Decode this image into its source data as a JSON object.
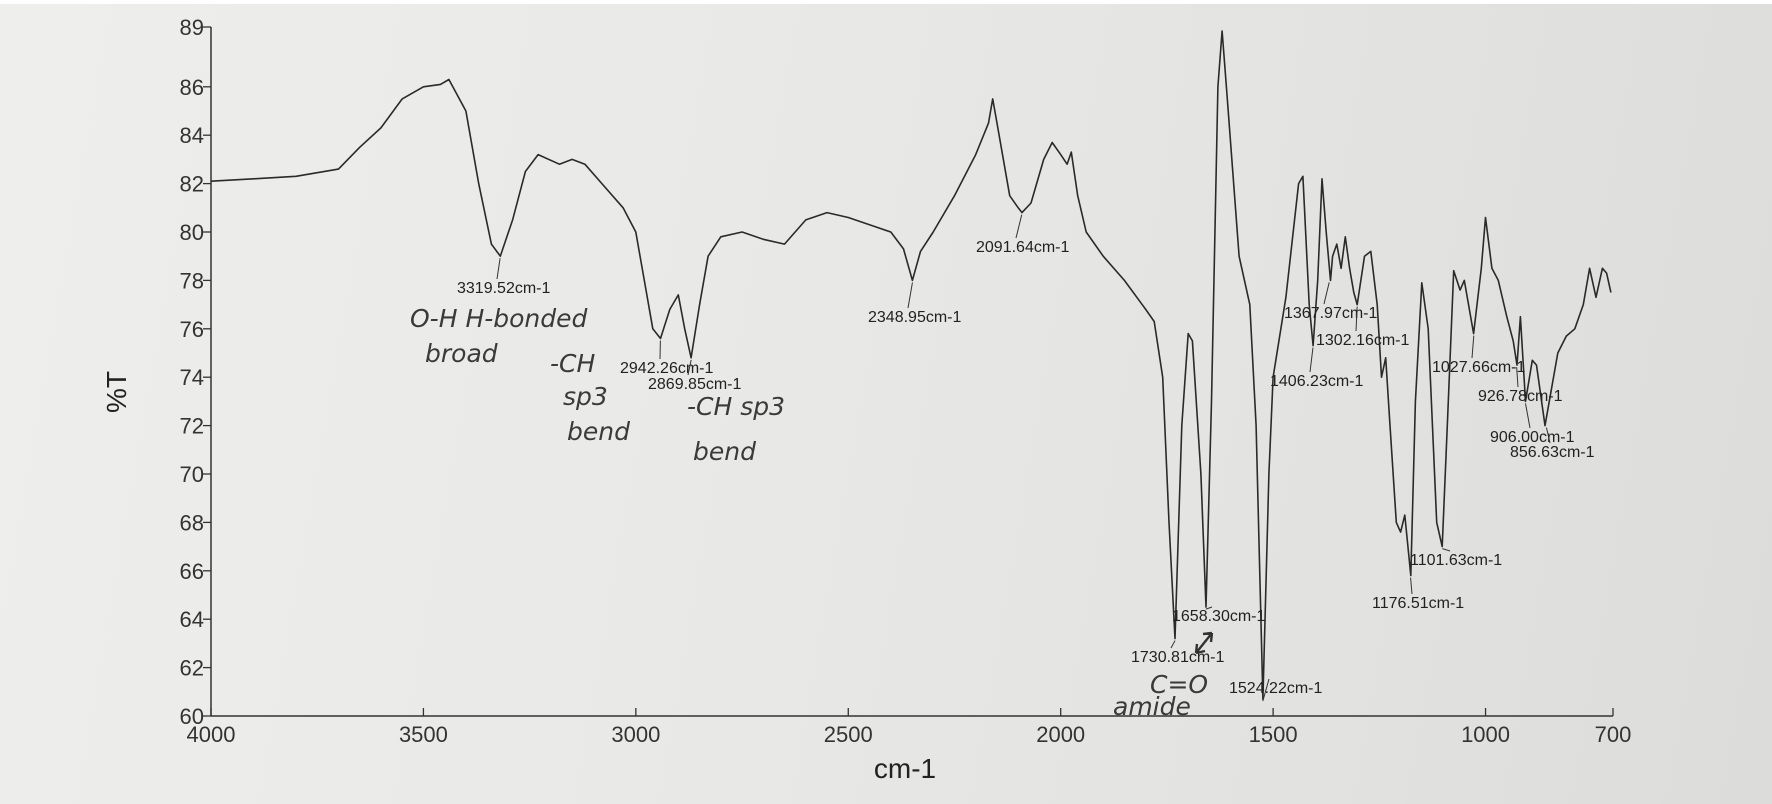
{
  "chart_data": {
    "type": "line",
    "xlabel": "cm-1",
    "ylabel": "%T",
    "xlim": [
      4000,
      700
    ],
    "ylim": [
      60,
      89
    ],
    "x_reversed": true,
    "grid": false,
    "line_color": "#2a2a2a",
    "xticks": [
      4000,
      3500,
      3000,
      2500,
      2000,
      1500,
      1000,
      700
    ],
    "yticks": [
      60,
      62,
      64,
      66,
      68,
      70,
      72,
      74,
      76,
      78,
      80,
      82,
      84,
      86,
      89
    ],
    "series": [
      {
        "x": [
          4000,
          3900,
          3800,
          3700,
          3650,
          3600,
          3550,
          3500,
          3460,
          3440,
          3400,
          3370,
          3340,
          3319,
          3290,
          3260,
          3230,
          3180,
          3150,
          3120,
          3080,
          3030,
          3000,
          2980,
          2960,
          2942,
          2920,
          2900,
          2885,
          2870,
          2850,
          2830,
          2800,
          2750,
          2700,
          2650,
          2600,
          2550,
          2500,
          2450,
          2400,
          2370,
          2349,
          2330,
          2300,
          2250,
          2200,
          2170,
          2160,
          2150,
          2120,
          2100,
          2091,
          2070,
          2040,
          2020,
          2000,
          1985,
          1975,
          1960,
          1940,
          1900,
          1850,
          1800,
          1780,
          1760,
          1745,
          1731,
          1715,
          1700,
          1690,
          1670,
          1658,
          1645,
          1630,
          1620,
          1610,
          1580,
          1555,
          1540,
          1524,
          1510,
          1500,
          1470,
          1440,
          1430,
          1415,
          1406,
          1395,
          1385,
          1375,
          1365,
          1360,
          1350,
          1340,
          1330,
          1320,
          1310,
          1302,
          1285,
          1270,
          1255,
          1245,
          1235,
          1225,
          1210,
          1200,
          1190,
          1176,
          1165,
          1150,
          1135,
          1115,
          1102,
          1090,
          1075,
          1060,
          1050,
          1028,
          1010,
          1000,
          985,
          970,
          950,
          935,
          926,
          918,
          906,
          890,
          880,
          860,
          845,
          830,
          810,
          790,
          770,
          755,
          740,
          725,
          715,
          705
        ],
        "y": [
          82.1,
          82.2,
          82.3,
          82.6,
          83.5,
          84.3,
          85.5,
          86,
          86.1,
          86.3,
          85,
          82,
          79.5,
          79,
          80.5,
          82.5,
          83.2,
          82.8,
          83,
          82.8,
          82,
          81,
          80,
          78,
          76,
          75.6,
          76.8,
          77.4,
          76,
          74.8,
          77,
          79,
          79.8,
          80,
          79.7,
          79.5,
          80.5,
          80.8,
          80.6,
          80.3,
          80,
          79.3,
          78,
          79.2,
          80,
          81.5,
          83.2,
          84.5,
          85.5,
          84.5,
          81.5,
          81,
          80.8,
          81.2,
          83,
          83.7,
          83.2,
          82.8,
          83.3,
          81.5,
          80,
          79,
          78,
          76.8,
          76.3,
          74,
          68,
          63.2,
          72,
          75.8,
          75.5,
          70,
          64.5,
          73,
          86,
          88.3,
          86,
          79,
          77,
          72,
          60.7,
          70,
          74,
          77.3,
          82,
          82.3,
          77,
          75.3,
          78,
          82.2,
          80,
          78,
          79,
          79.5,
          78.5,
          79.8,
          78.5,
          77.5,
          77,
          79,
          79.2,
          77,
          74,
          74.8,
          72,
          68,
          67.6,
          68.3,
          65.8,
          73,
          77.9,
          76,
          68,
          67,
          72,
          78.4,
          77.6,
          78,
          75.8,
          78.5,
          80.6,
          78.5,
          78,
          76.5,
          75.5,
          74.5,
          76.5,
          73,
          74.7,
          74.5,
          72,
          73.5,
          75,
          75.7,
          76,
          77,
          78.5,
          77.3,
          78.5,
          78.3,
          77.5
        ]
      }
    ],
    "peak_labels": [
      {
        "x": 3319.52,
        "y": 79,
        "label": "3319.52cm-1"
      },
      {
        "x": 2942.26,
        "y": 75.6,
        "label": "2942.26cm-1"
      },
      {
        "x": 2869.85,
        "y": 74.8,
        "label": "2869.85cm-1"
      },
      {
        "x": 2348.95,
        "y": 78,
        "label": "2348.95cm-1"
      },
      {
        "x": 2091.64,
        "y": 80.8,
        "label": "2091.64cm-1"
      },
      {
        "x": 1730.81,
        "y": 63.2,
        "label": "1730.81cm-1"
      },
      {
        "x": 1658.3,
        "y": 64.5,
        "label": "1658.30cm-1"
      },
      {
        "x": 1524.22,
        "y": 60.7,
        "label": "1524.22cm-1"
      },
      {
        "x": 1406.23,
        "y": 75.3,
        "label": "1406.23cm-1"
      },
      {
        "x": 1367.97,
        "y": 78,
        "label": "1367.97cm-1"
      },
      {
        "x": 1302.16,
        "y": 77,
        "label": "1302.16cm-1"
      },
      {
        "x": 1176.51,
        "y": 65.8,
        "label": "1176.51cm-1"
      },
      {
        "x": 1101.63,
        "y": 67,
        "label": "1101.63cm-1"
      },
      {
        "x": 1027.66,
        "y": 75.8,
        "label": "1027.66cm-1"
      },
      {
        "x": 926.78,
        "y": 74.5,
        "label": "926.78cm-1"
      },
      {
        "x": 906.0,
        "y": 73,
        "label": "906.00cm-1"
      },
      {
        "x": 856.63,
        "y": 72,
        "label": "856.63cm-1"
      }
    ],
    "handwritten_notes": [
      {
        "text": "O-H  H-bonded"
      },
      {
        "text": "broad"
      },
      {
        "text": "-CH"
      },
      {
        "text": "sp3"
      },
      {
        "text": "bend"
      },
      {
        "text": "-CH sp3"
      },
      {
        "text": "bend"
      },
      {
        "text": "C=O"
      },
      {
        "text": "amide"
      }
    ]
  }
}
